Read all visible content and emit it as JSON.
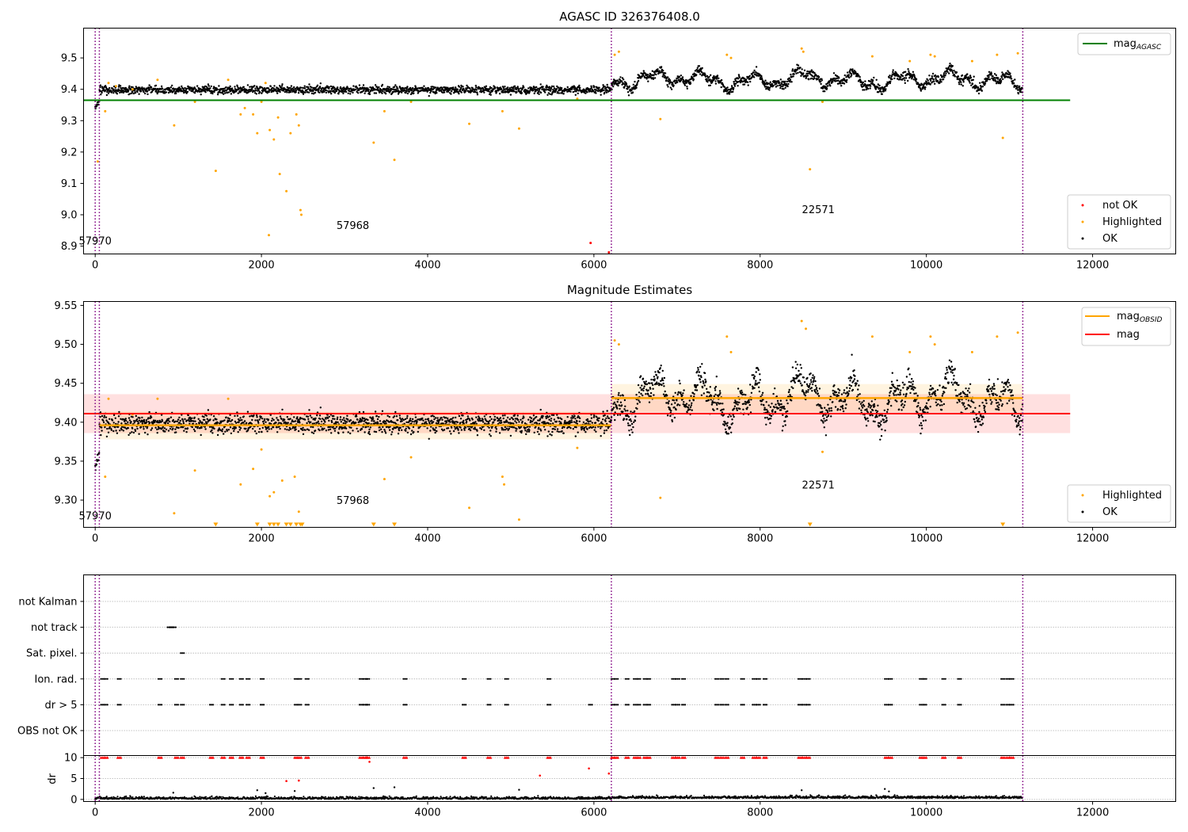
{
  "chart_data": [
    {
      "type": "scatter",
      "title": "AGASC ID 326376408.0",
      "xlim": [
        -140,
        13000
      ],
      "ylim": [
        8.875,
        9.595
      ],
      "xticks": [
        "0",
        "2000",
        "4000",
        "6000",
        "8000",
        "10000",
        "12000"
      ],
      "xtick_values": [
        0,
        2000,
        4000,
        6000,
        8000,
        10000,
        12000
      ],
      "yticks": [
        "8.9",
        "9.0",
        "9.1",
        "9.2",
        "9.3",
        "9.4",
        "9.5"
      ],
      "ytick_values": [
        8.9,
        9.0,
        9.1,
        9.2,
        9.3,
        9.4,
        9.5
      ],
      "reference_line": {
        "name_main": "mag",
        "name_sub": "AGASC",
        "value": 9.365,
        "x_range": [
          -140,
          11730
        ],
        "color": "#008000"
      },
      "obsid_boundaries": [
        0,
        50,
        6210,
        11160
      ],
      "obsid_labels": [
        {
          "text": "57970",
          "x": 0,
          "y": 8.905
        },
        {
          "text": "57968",
          "x": 3100,
          "y": 8.955
        },
        {
          "text": "22571",
          "x": 8700,
          "y": 9.005
        }
      ],
      "series": [
        {
          "name": "not OK",
          "color": "#ff0000"
        },
        {
          "name": "Highlighted",
          "color": "#ffa500"
        },
        {
          "name": "OK",
          "color": "#000000"
        }
      ],
      "not_ok_points": [
        [
          5960,
          8.91
        ],
        [
          6180,
          8.88
        ]
      ],
      "highlighted_points": [
        [
          30,
          9.17
        ],
        [
          120,
          9.33
        ],
        [
          160,
          9.42
        ],
        [
          250,
          9.41
        ],
        [
          450,
          9.4
        ],
        [
          750,
          9.43
        ],
        [
          950,
          9.285
        ],
        [
          1200,
          9.36
        ],
        [
          1450,
          9.14
        ],
        [
          1600,
          9.43
        ],
        [
          1750,
          9.32
        ],
        [
          1800,
          9.34
        ],
        [
          1900,
          9.32
        ],
        [
          1950,
          9.26
        ],
        [
          2000,
          9.36
        ],
        [
          2050,
          9.42
        ],
        [
          2100,
          9.27
        ],
        [
          2150,
          9.24
        ],
        [
          2200,
          9.31
        ],
        [
          2220,
          9.13
        ],
        [
          2300,
          9.075
        ],
        [
          2350,
          9.26
        ],
        [
          2420,
          9.32
        ],
        [
          2450,
          9.285
        ],
        [
          2470,
          9.015
        ],
        [
          2480,
          9.0
        ],
        [
          2090,
          8.935
        ],
        [
          3350,
          9.23
        ],
        [
          3480,
          9.33
        ],
        [
          3600,
          9.175
        ],
        [
          3800,
          9.36
        ],
        [
          4500,
          9.29
        ],
        [
          4900,
          9.33
        ],
        [
          5100,
          9.275
        ],
        [
          5800,
          9.37
        ],
        [
          6250,
          9.51
        ],
        [
          6300,
          9.52
        ],
        [
          6800,
          9.305
        ],
        [
          7600,
          9.51
        ],
        [
          7650,
          9.5
        ],
        [
          8500,
          9.53
        ],
        [
          8520,
          9.52
        ],
        [
          8600,
          9.145
        ],
        [
          8750,
          9.36
        ],
        [
          9350,
          9.505
        ],
        [
          9800,
          9.49
        ],
        [
          10050,
          9.51
        ],
        [
          10100,
          9.505
        ],
        [
          10550,
          9.49
        ],
        [
          10850,
          9.51
        ],
        [
          10920,
          9.245
        ],
        [
          11100,
          9.515
        ]
      ]
    },
    {
      "type": "scatter",
      "title": "Magnitude Estimates",
      "xlim": [
        -140,
        13000
      ],
      "ylim": [
        9.265,
        9.555
      ],
      "xticks": [
        "0",
        "2000",
        "4000",
        "6000",
        "8000",
        "10000",
        "12000"
      ],
      "xtick_values": [
        0,
        2000,
        4000,
        6000,
        8000,
        10000,
        12000
      ],
      "yticks": [
        "9.30",
        "9.35",
        "9.40",
        "9.45",
        "9.50",
        "9.55"
      ],
      "ytick_values": [
        9.3,
        9.35,
        9.4,
        9.45,
        9.5,
        9.55
      ],
      "mag_line": {
        "name": "mag",
        "value": 9.411,
        "band": [
          9.386,
          9.436
        ],
        "x_range": [
          -140,
          11730
        ],
        "color": "#ff0000"
      },
      "obsid_mag_segments": {
        "name_main": "mag",
        "name_sub": "OBSID",
        "color": "#ffa500",
        "segments": [
          {
            "x": [
              50,
              6210
            ],
            "value": 9.396
          },
          {
            "x": [
              6210,
              11160
            ],
            "value": 9.431
          }
        ]
      },
      "obsid_boundaries": [
        0,
        50,
        6210,
        11160
      ],
      "obsid_labels": [
        {
          "text": "57970",
          "x": 0,
          "y": 9.275
        },
        {
          "text": "57968",
          "x": 3100,
          "y": 9.295
        },
        {
          "text": "22571",
          "x": 8700,
          "y": 9.315
        }
      ],
      "series": [
        {
          "name": "Highlighted",
          "color": "#ffa500"
        },
        {
          "name": "OK",
          "color": "#000000"
        }
      ],
      "highlighted_points": [
        [
          120,
          9.33
        ],
        [
          160,
          9.43
        ],
        [
          450,
          9.41
        ],
        [
          750,
          9.43
        ],
        [
          950,
          9.283
        ],
        [
          1200,
          9.338
        ],
        [
          1600,
          9.43
        ],
        [
          1750,
          9.32
        ],
        [
          1900,
          9.34
        ],
        [
          2000,
          9.365
        ],
        [
          2100,
          9.305
        ],
        [
          2150,
          9.31
        ],
        [
          2250,
          9.325
        ],
        [
          2400,
          9.33
        ],
        [
          2450,
          9.285
        ],
        [
          3480,
          9.327
        ],
        [
          3800,
          9.355
        ],
        [
          4500,
          9.29
        ],
        [
          4900,
          9.33
        ],
        [
          4920,
          9.32
        ],
        [
          5100,
          9.275
        ],
        [
          5800,
          9.367
        ],
        [
          6250,
          9.505
        ],
        [
          6300,
          9.5
        ],
        [
          6800,
          9.303
        ],
        [
          7600,
          9.51
        ],
        [
          7650,
          9.49
        ],
        [
          8500,
          9.53
        ],
        [
          8550,
          9.52
        ],
        [
          8750,
          9.362
        ],
        [
          9350,
          9.51
        ],
        [
          9800,
          9.49
        ],
        [
          10050,
          9.51
        ],
        [
          10100,
          9.5
        ],
        [
          10550,
          9.49
        ],
        [
          10850,
          9.51
        ],
        [
          11100,
          9.515
        ]
      ],
      "lower_limit_markers": [
        1450,
        1950,
        2100,
        2150,
        2200,
        2300,
        2350,
        2420,
        2470,
        2490,
        3350,
        3600,
        8600,
        10920
      ]
    },
    {
      "type": "scatter",
      "title": "",
      "xlim": [
        -140,
        13000
      ],
      "categories": [
        "not Kalman",
        "not track",
        "Sat. pixel.",
        "Ion. rad.",
        "dr > 5",
        "OBS not OK"
      ],
      "category_points": {
        "not track": [
          870,
          900,
          930
        ],
        "Sat. pixel.": [
          1030
        ],
        "Ion. rad.": [
          70,
          110,
          270,
          760,
          960,
          1030,
          1520,
          1620,
          1740,
          1820,
          1990,
          2400,
          2440,
          2530,
          3180,
          3230,
          3260,
          3710,
          4420,
          4720,
          4930,
          5440,
          6210,
          6250,
          6380,
          6480,
          6520,
          6600,
          6640,
          6940,
          6990,
          7060,
          7460,
          7520,
          7580,
          7770,
          7910,
          7960,
          8040,
          8460,
          8510,
          8560,
          9500,
          9550,
          9920,
          9960,
          10190,
          10380,
          10900,
          10960,
          11010
        ],
        "dr > 5": [
          70,
          110,
          270,
          760,
          960,
          1030,
          1380,
          1520,
          1620,
          1740,
          1820,
          1990,
          2400,
          2440,
          2530,
          3180,
          3230,
          3260,
          3710,
          4420,
          4720,
          4930,
          5440,
          5940,
          6210,
          6250,
          6380,
          6480,
          6520,
          6600,
          6640,
          6940,
          6990,
          7060,
          7460,
          7520,
          7580,
          7770,
          7910,
          7960,
          8040,
          8460,
          8510,
          8560,
          9500,
          9550,
          9920,
          9960,
          10190,
          10380,
          10900,
          10960,
          11010
        ]
      },
      "obsid_boundaries": [
        0,
        50,
        6210,
        11160
      ]
    },
    {
      "type": "scatter",
      "title": "",
      "ylabel": "dr",
      "xlim": [
        -140,
        13000
      ],
      "ylim": [
        -0.5,
        10.5
      ],
      "xticks": [
        "0",
        "2000",
        "4000",
        "6000",
        "8000",
        "10000",
        "12000"
      ],
      "xtick_values": [
        0,
        2000,
        4000,
        6000,
        8000,
        10000,
        12000
      ],
      "yticks": [
        "0",
        "5",
        "10"
      ],
      "ytick_values": [
        0,
        5,
        10
      ],
      "clip_value": 10,
      "red_clipped_x": [
        70,
        110,
        270,
        760,
        960,
        1030,
        1380,
        1520,
        1620,
        1740,
        1820,
        1990,
        2400,
        2440,
        2530,
        3180,
        3230,
        3260,
        3710,
        4420,
        4720,
        4930,
        5440,
        6210,
        6250,
        6380,
        6480,
        6520,
        6600,
        6640,
        6940,
        6990,
        7060,
        7460,
        7520,
        7580,
        7770,
        7910,
        7960,
        8040,
        8460,
        8510,
        8560,
        9500,
        9550,
        9920,
        9960,
        10190,
        10380,
        10900,
        10960,
        11010
      ],
      "red_points": [
        [
          2300,
          4.4
        ],
        [
          2450,
          4.5
        ],
        [
          3300,
          9.0
        ],
        [
          5350,
          5.7
        ],
        [
          5940,
          7.4
        ],
        [
          6180,
          6.2
        ]
      ],
      "black_outliers": [
        [
          940,
          1.6
        ],
        [
          1950,
          2.2
        ],
        [
          2050,
          1.5
        ],
        [
          2400,
          2.0
        ],
        [
          3350,
          2.7
        ],
        [
          3600,
          2.9
        ],
        [
          5100,
          2.3
        ],
        [
          8500,
          2.2
        ],
        [
          9500,
          2.5
        ],
        [
          9550,
          1.9
        ]
      ],
      "obsid_boundaries": [
        0,
        50,
        6210,
        11160
      ]
    }
  ]
}
